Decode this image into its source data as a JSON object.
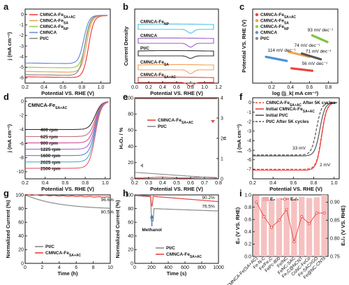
{
  "panels": [
    {
      "id": "a",
      "letter": "a",
      "xlabel": "Potential VS. RHE (V)",
      "ylabel": "j (mA cm⁻²)",
      "xlim": [
        0.2,
        1.1
      ],
      "ylim": [
        -6.5,
        0.5
      ],
      "xticks": [
        0.2,
        0.4,
        0.6,
        0.8,
        1.0
      ],
      "yticks": [
        0,
        -1,
        -2,
        -3,
        -4,
        -5,
        -6
      ],
      "legend": [
        {
          "label": "CMNCA-Fe",
          "sub": "SA+AC",
          "color": "#e8433f"
        },
        {
          "label": "CMNCA-Fe",
          "sub": "SA",
          "color": "#f2a154"
        },
        {
          "label": "CMNCA-Fe",
          "sub": "NP",
          "color": "#9acd4d"
        },
        {
          "label": "CMNCA",
          "sub": "",
          "color": "#6c8cd5"
        },
        {
          "label": "Pt/C",
          "sub": "",
          "color": "#8a8a8a"
        }
      ],
      "curves": [
        {
          "color": "#e8433f",
          "lim": -5.9,
          "e": 0.87
        },
        {
          "color": "#f2a154",
          "lim": -5.4,
          "e": 0.85
        },
        {
          "color": "#9acd4d",
          "lim": -5.0,
          "e": 0.84
        },
        {
          "color": "#6c8cd5",
          "lim": -4.6,
          "e": 0.82
        },
        {
          "color": "#8a8a8a",
          "lim": -5.7,
          "e": 0.83
        }
      ]
    },
    {
      "id": "b",
      "letter": "b",
      "xlabel": "Potential VS. RHE (V)",
      "ylabel": "Current Density",
      "xlim": [
        0.0,
        1.2
      ],
      "xticks": [
        0.0,
        0.2,
        0.4,
        0.6,
        0.8,
        1.0,
        1.2
      ],
      "labels": [
        {
          "text": "CMNCA-Fe",
          "sub": "NP",
          "color": "#4dc0e8"
        },
        {
          "text": "CMNCA",
          "sub": "",
          "color": "#9a5ec8"
        },
        {
          "text": "Pt/C",
          "sub": "",
          "color": "#333333"
        },
        {
          "text": "CMNCA-Fe",
          "sub": "SA",
          "color": "#f2a154"
        },
        {
          "text": "CMNCA-Fe",
          "sub": "SA+AC",
          "color": "#e8433f"
        }
      ]
    },
    {
      "id": "c",
      "letter": "c",
      "xlabel": "log (|j_k| mA cm⁻²)",
      "ylabel": "Potential VS. RHE (V)",
      "xlim": [
        0.0,
        0.9
      ],
      "ylim": [
        0.55,
        1.0
      ],
      "xticks": [
        0.2,
        0.4,
        0.6,
        0.8
      ],
      "legend": [
        {
          "label": "CMNCA-Fe",
          "sub": "SA+AC",
          "color": "#e8433f"
        },
        {
          "label": "CMNCA-Fe",
          "sub": "SA",
          "color": "#f2a154"
        },
        {
          "label": "CMNCA-Fe",
          "sub": "NP",
          "color": "#9acd4d"
        },
        {
          "label": "CMNCA",
          "sub": "",
          "color": "#6c8cd5"
        },
        {
          "label": "Pt/C",
          "sub": "",
          "color": "#8a8a8a"
        }
      ],
      "slopes": [
        {
          "text": "93 mV dec⁻¹",
          "color": "#7cc33d"
        },
        {
          "text": "74 mV dec⁻¹",
          "color": "#f2a154"
        },
        {
          "text": "71 mV dec⁻¹",
          "color": "#555555"
        },
        {
          "text": "114 mV dec⁻¹",
          "color": "#4a90d9"
        },
        {
          "text": "56 mV dec⁻¹",
          "color": "#e8433f"
        }
      ]
    },
    {
      "id": "d",
      "letter": "d",
      "title": "CMNCA-Fe",
      "title_sub": "SA+AC",
      "xlabel": "Potential VS. RHE (V)",
      "ylabel": "j (mA cm⁻²)",
      "xlim": [
        0.2,
        1.05
      ],
      "ylim": [
        -11,
        0.5
      ],
      "xticks": [
        0.2,
        0.4,
        0.6,
        0.8,
        1.0
      ],
      "yticks": [
        0,
        -2,
        -4,
        -6,
        -8,
        -10
      ],
      "rpm": [
        "400 rpm",
        "625 rpm",
        "900 rpm",
        "1225 rpm",
        "1600 rpm",
        "2025 rpm",
        "2500 rpm"
      ],
      "limits": [
        -4.0,
        -5.0,
        -5.9,
        -6.8,
        -7.7,
        -8.6,
        -9.5
      ],
      "colors": [
        "#333333",
        "#c07070",
        "#d24e8f",
        "#a06ad1",
        "#5b7fd4",
        "#4db3c4",
        "#e85a6a"
      ]
    },
    {
      "id": "e",
      "letter": "e",
      "xlabel": "Potential VS. RHE (V)",
      "ylabel": "H₂O₂ / %",
      "ylabel2": "n",
      "xlim": [
        0.2,
        0.8
      ],
      "ylim": [
        0,
        100
      ],
      "xticks": [
        0.2,
        0.3,
        0.4,
        0.5,
        0.6,
        0.7,
        0.8
      ],
      "yticks": [
        0,
        20,
        40,
        60,
        80,
        100
      ],
      "y2ticks": [
        0,
        1,
        2,
        3,
        4
      ],
      "legend": [
        {
          "label": "CMNCA-Fe",
          "sub": "SA+AC",
          "color": "#e8433f"
        },
        {
          "label": "Pt/C",
          "sub": "",
          "color": "#8a8a8a"
        }
      ]
    },
    {
      "id": "f",
      "letter": "f",
      "xlabel": "Potential VS. RHE (V)",
      "ylabel": "j (mA cm⁻²)",
      "xlim": [
        0.2,
        1.05
      ],
      "ylim": [
        -8,
        0.5
      ],
      "xticks": [
        0.2,
        0.4,
        0.6,
        0.8,
        1.0
      ],
      "yticks": [
        0,
        -1,
        -2,
        -3,
        -4,
        -5,
        -6,
        -7
      ],
      "legend": [
        {
          "label": "CMNCA-Fe",
          "sub": "SA+AC",
          "tail": " After 5K cycles",
          "color": "#e8433f",
          "dash": true
        },
        {
          "label": "Initial CMNCA-Fe",
          "sub": "SA+AC",
          "tail": "",
          "color": "#e8433f",
          "dash": false
        },
        {
          "label": "Initial Pt/C",
          "sub": "",
          "tail": "",
          "color": "#555555",
          "dash": false
        },
        {
          "label": "Pt/C After 5K cycles",
          "sub": "",
          "tail": "",
          "color": "#555555",
          "dash": true
        }
      ],
      "annotations": [
        {
          "text": "33 mV",
          "color": "#444444"
        },
        {
          "text": "2 mV",
          "color": "#e8433f"
        }
      ]
    },
    {
      "id": "g",
      "letter": "g",
      "xlabel": "Time (h)",
      "ylabel": "Normalized Current (%)",
      "xlim": [
        0,
        10
      ],
      "ylim": [
        0,
        100
      ],
      "xticks": [
        0,
        2,
        4,
        6,
        8,
        10
      ],
      "yticks": [
        0,
        20,
        40,
        60,
        80,
        100
      ],
      "end_values": [
        {
          "text": "96.6%",
          "color": "#e8433f"
        },
        {
          "text": "80.5%",
          "color": "#888888"
        }
      ],
      "legend": [
        {
          "label": "Pt/C",
          "sub": "",
          "color": "#8a8a8a"
        },
        {
          "label": "CMNCA-Fe",
          "sub": "SA+AC",
          "color": "#e8433f"
        }
      ]
    },
    {
      "id": "h",
      "letter": "h",
      "xlabel": "Time (s)",
      "ylabel": "Normalized Current (%)",
      "xlim": [
        0,
        1000
      ],
      "ylim": [
        0,
        100
      ],
      "xticks": [
        0,
        200,
        400,
        600,
        800,
        1000
      ],
      "yticks": [
        0,
        20,
        40,
        60,
        80,
        100
      ],
      "end_values": [
        {
          "text": "90.2%",
          "color": "#e8433f"
        },
        {
          "text": "76.5%",
          "color": "#888888"
        }
      ],
      "arrow_label": "Methanol",
      "legend": [
        {
          "label": "Pt/C",
          "sub": "",
          "color": "#8a8a8a"
        },
        {
          "label": "CMNCA-Fe",
          "sub": "SA+AC",
          "color": "#e8433f"
        }
      ]
    },
    {
      "id": "i",
      "letter": "i",
      "ylabel": "E₀ (V VS. RHE)",
      "ylabel2": "E₁/₂ (V VS. RHE)",
      "ylim": [
        0,
        1.0
      ],
      "yticks": [
        0.0,
        0.2,
        0.4,
        0.6,
        0.8,
        1.0
      ],
      "y2lim": [
        0.75,
        0.92
      ],
      "y2ticks": [
        0.75,
        0.8,
        0.85,
        0.9
      ],
      "legend": [
        {
          "label": "E₀",
          "color": "#f4a9a8"
        },
        {
          "label": "E₁/₂",
          "color": "#e8433f"
        }
      ],
      "categories": [
        "CMNCA-Fe(SA+AC)",
        "Fe-N-C",
        "Fe/Fe₃C",
        "FePc-800",
        "Fe/NC",
        "FeNC-SAC",
        "Fe₃C@NCNT",
        "CoNC-FeCo",
        "Fe-SAC/rGO",
        "Fe@NC-CNTs"
      ],
      "e0": [
        0.99,
        0.95,
        0.93,
        0.95,
        0.96,
        0.94,
        0.97,
        0.95,
        0.96,
        1.0
      ],
      "e12": [
        0.9,
        0.86,
        0.83,
        0.85,
        0.88,
        0.79,
        0.86,
        0.84,
        0.87,
        0.87
      ]
    }
  ]
}
